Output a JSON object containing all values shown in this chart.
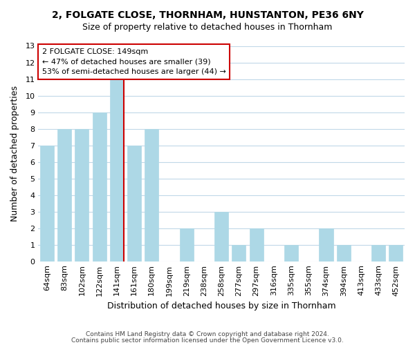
{
  "title_line1": "2, FOLGATE CLOSE, THORNHAM, HUNSTANTON, PE36 6NY",
  "title_line2": "Size of property relative to detached houses in Thornham",
  "xlabel": "Distribution of detached houses by size in Thornham",
  "ylabel": "Number of detached properties",
  "categories": [
    "64sqm",
    "83sqm",
    "102sqm",
    "122sqm",
    "141sqm",
    "161sqm",
    "180sqm",
    "199sqm",
    "219sqm",
    "238sqm",
    "258sqm",
    "277sqm",
    "297sqm",
    "316sqm",
    "335sqm",
    "355sqm",
    "374sqm",
    "394sqm",
    "413sqm",
    "433sqm",
    "452sqm"
  ],
  "values": [
    7,
    8,
    8,
    9,
    11,
    7,
    8,
    0,
    2,
    0,
    3,
    1,
    2,
    0,
    1,
    0,
    2,
    1,
    0,
    1,
    1
  ],
  "bar_color": "#add8e6",
  "bar_edge_color": "#add8e6",
  "highlight_index": 4,
  "highlight_line_color": "#cc0000",
  "ylim": [
    0,
    13
  ],
  "yticks": [
    0,
    1,
    2,
    3,
    4,
    5,
    6,
    7,
    8,
    9,
    10,
    11,
    12,
    13
  ],
  "annotation_title": "2 FOLGATE CLOSE: 149sqm",
  "annotation_line1": "← 47% of detached houses are smaller (39)",
  "annotation_line2": "53% of semi-detached houses are larger (44) →",
  "annotation_box_color": "#ffffff",
  "annotation_box_edge": "#cc0000",
  "footer_line1": "Contains HM Land Registry data © Crown copyright and database right 2024.",
  "footer_line2": "Contains public sector information licensed under the Open Government Licence v3.0.",
  "background_color": "#ffffff",
  "grid_color": "#c0d8e8"
}
